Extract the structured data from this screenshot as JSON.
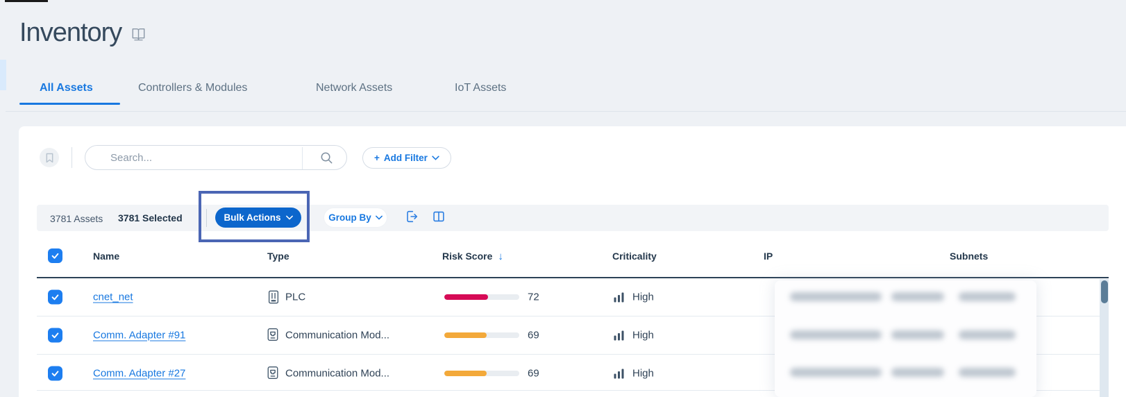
{
  "page": {
    "title": "Inventory"
  },
  "tabs": [
    {
      "label": "All Assets",
      "active": true
    },
    {
      "label": "Controllers & Modules",
      "active": false
    },
    {
      "label": "Network Assets",
      "active": false
    },
    {
      "label": "IoT Assets",
      "active": false
    }
  ],
  "search": {
    "placeholder": "Search..."
  },
  "add_filter": {
    "plus": "+",
    "label": "Add Filter"
  },
  "toolbar": {
    "assets_count": "3781 Assets",
    "selected_count": "3781 Selected",
    "bulk_actions_label": "Bulk Actions",
    "group_by_label": "Group By"
  },
  "annotation": {
    "target": "bulk-actions-button",
    "color": "#4b66b4"
  },
  "table": {
    "columns": [
      {
        "label": "Name"
      },
      {
        "label": "Type"
      },
      {
        "label": "Risk Score",
        "sorted": "desc",
        "sort_icon": "↓"
      },
      {
        "label": "Criticality"
      },
      {
        "label": "IP"
      },
      {
        "label": "Subnets"
      }
    ],
    "select_all_checked": true,
    "rows": [
      {
        "checked": true,
        "name": "cnet_net",
        "type": "PLC",
        "type_icon": "plc-icon",
        "risk_score": 72,
        "risk_color": "#d60b56",
        "criticality": "High",
        "ip_redacted": true,
        "subnets_redacted": true
      },
      {
        "checked": true,
        "name": "Comm. Adapter #91",
        "type": "Communication Mod...",
        "type_icon": "comm-module-icon",
        "risk_score": 69,
        "risk_color": "#f3a93a",
        "criticality": "High",
        "ip_redacted": true,
        "subnets_redacted": true
      },
      {
        "checked": true,
        "name": "Comm. Adapter #27",
        "type": "Communication Mod...",
        "type_icon": "comm-module-icon",
        "risk_score": 69,
        "risk_color": "#f3a93a",
        "criticality": "High",
        "ip_redacted": true,
        "subnets_redacted": true
      }
    ]
  },
  "colors": {
    "accent_blue": "#1878e0",
    "checkbox_blue": "#1d7ef0",
    "button_blue": "#0c66cc",
    "annotation_blue": "#4b66b4",
    "risk_high_red": "#d60b56",
    "risk_medium_orange": "#f3a93a",
    "header_navy": "#24384c"
  }
}
